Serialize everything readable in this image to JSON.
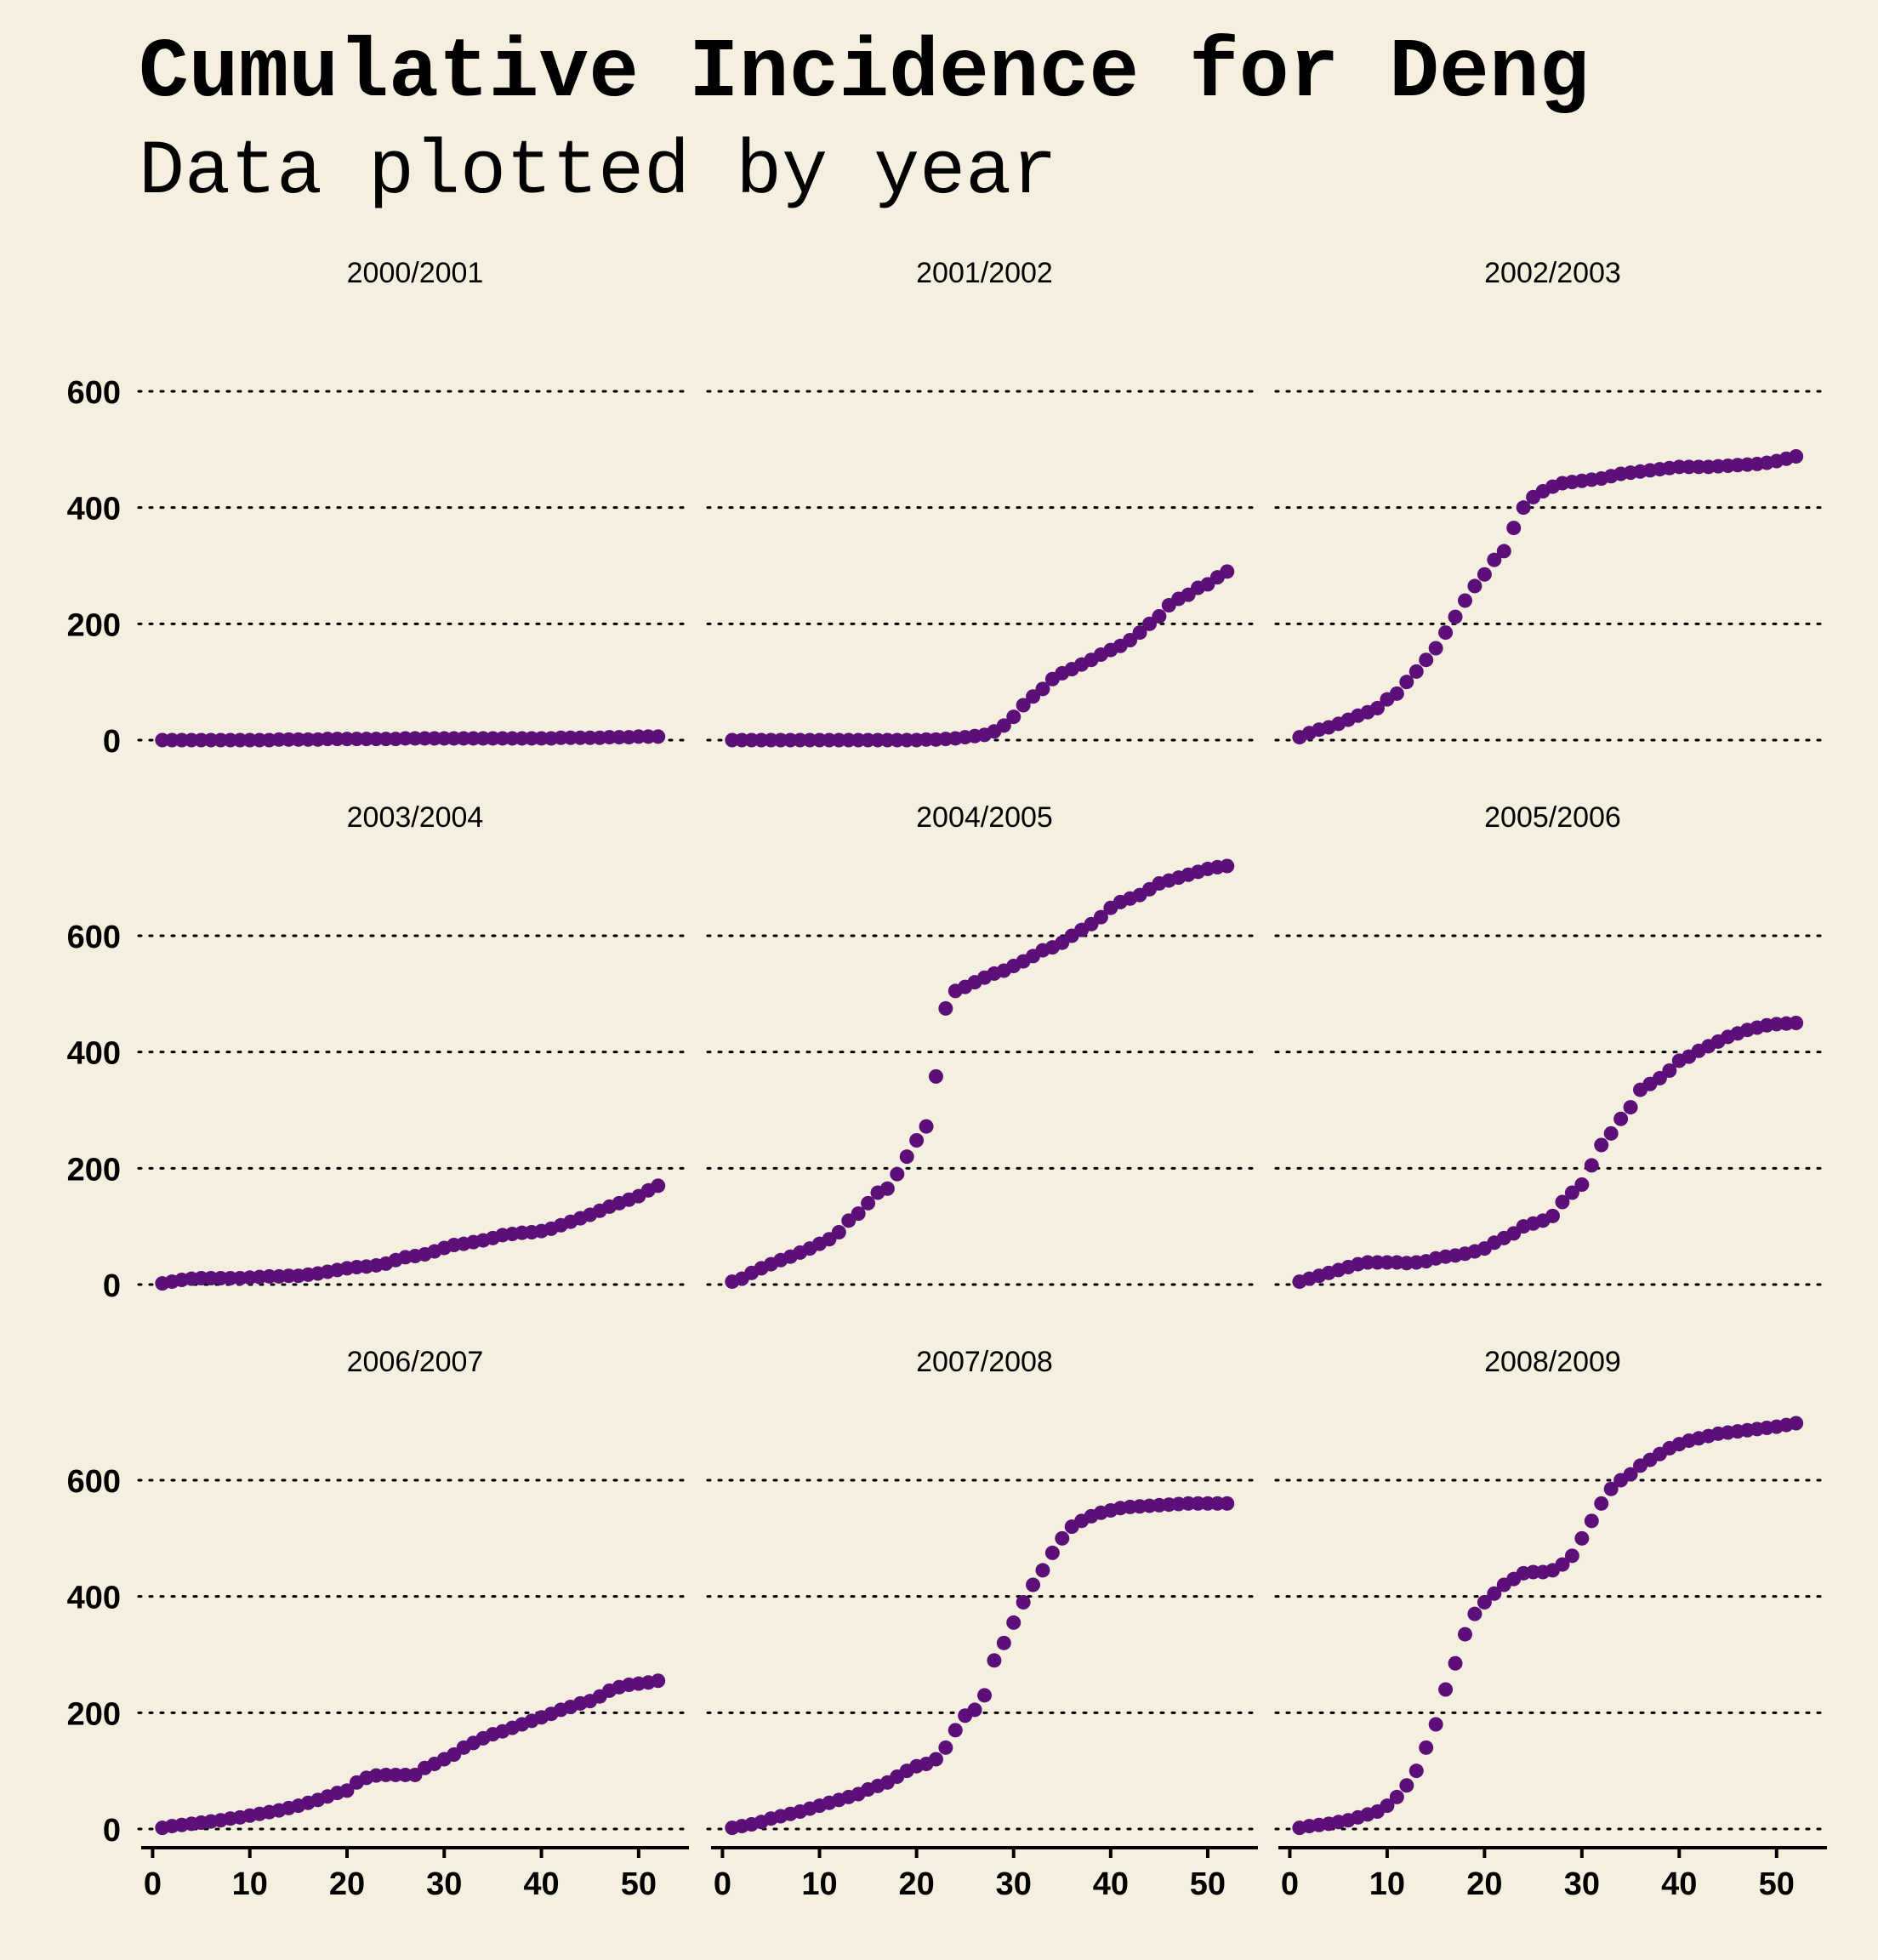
{
  "chart_data": {
    "type": "scatter",
    "title": "Cumulative Incidence for Deng",
    "subtitle": "Data plotted by year",
    "xlabel": "",
    "ylabel": "",
    "xlim": [
      -1,
      55
    ],
    "x_ticks": [
      0,
      10,
      20,
      30,
      40,
      50
    ],
    "marker_color": "#5c0f78",
    "background": "#f5efe0",
    "panels": [
      {
        "label": "2000/2001",
        "ylim": [
          -5,
          620
        ],
        "y_ticks": [
          0,
          200,
          400,
          600
        ],
        "x": [
          1,
          2,
          3,
          4,
          5,
          6,
          7,
          8,
          9,
          10,
          11,
          12,
          13,
          14,
          15,
          16,
          17,
          18,
          19,
          20,
          21,
          22,
          23,
          24,
          25,
          26,
          27,
          28,
          29,
          30,
          31,
          32,
          33,
          34,
          35,
          36,
          37,
          38,
          39,
          40,
          41,
          42,
          43,
          44,
          45,
          46,
          47,
          48,
          49,
          50,
          51,
          52
        ],
        "y": [
          0,
          0,
          0,
          0,
          0,
          0,
          0,
          0,
          0,
          0,
          0,
          0,
          1,
          1,
          1,
          1,
          1,
          2,
          2,
          2,
          2,
          2,
          2,
          2,
          2,
          3,
          3,
          3,
          3,
          3,
          3,
          3,
          3,
          3,
          3,
          3,
          3,
          3,
          3,
          3,
          3,
          4,
          4,
          4,
          4,
          4,
          5,
          5,
          5,
          6,
          6,
          6
        ]
      },
      {
        "label": "2001/2002",
        "ylim": [
          -5,
          620
        ],
        "y_ticks": [
          0,
          200,
          400,
          600
        ],
        "x": [
          1,
          2,
          3,
          4,
          5,
          6,
          7,
          8,
          9,
          10,
          11,
          12,
          13,
          14,
          15,
          16,
          17,
          18,
          19,
          20,
          21,
          22,
          23,
          24,
          25,
          26,
          27,
          28,
          29,
          30,
          31,
          32,
          33,
          34,
          35,
          36,
          37,
          38,
          39,
          40,
          41,
          42,
          43,
          44,
          45,
          46,
          47,
          48,
          49,
          50,
          51,
          52
        ],
        "y": [
          0,
          0,
          0,
          0,
          0,
          0,
          0,
          0,
          0,
          0,
          0,
          0,
          0,
          0,
          0,
          0,
          0,
          0,
          0,
          0,
          1,
          1,
          2,
          3,
          5,
          7,
          9,
          15,
          25,
          40,
          60,
          75,
          88,
          105,
          115,
          122,
          130,
          138,
          147,
          155,
          162,
          172,
          185,
          200,
          213,
          232,
          243,
          250,
          262,
          268,
          280,
          290
        ]
      },
      {
        "label": "2002/2003",
        "ylim": [
          -5,
          620
        ],
        "y_ticks": [
          0,
          200,
          400,
          600
        ],
        "x": [
          1,
          2,
          3,
          4,
          5,
          6,
          7,
          8,
          9,
          10,
          11,
          12,
          13,
          14,
          15,
          16,
          17,
          18,
          19,
          20,
          21,
          22,
          23,
          24,
          25,
          26,
          27,
          28,
          29,
          30,
          31,
          32,
          33,
          34,
          35,
          36,
          37,
          38,
          39,
          40,
          41,
          42,
          43,
          44,
          45,
          46,
          47,
          48,
          49,
          50,
          51,
          52
        ],
        "y": [
          5,
          12,
          18,
          22,
          28,
          35,
          42,
          48,
          55,
          70,
          80,
          100,
          118,
          138,
          158,
          185,
          212,
          240,
          265,
          285,
          310,
          325,
          365,
          400,
          418,
          428,
          436,
          442,
          444,
          446,
          448,
          450,
          454,
          458,
          460,
          462,
          464,
          466,
          468,
          470,
          470,
          470,
          470,
          471,
          472,
          473,
          474,
          475,
          477,
          480,
          484,
          488
        ]
      },
      {
        "label": "2003/2004",
        "ylim": [
          -5,
          770
        ],
        "y_ticks": [
          0,
          200,
          400,
          600
        ],
        "x": [
          1,
          2,
          3,
          4,
          5,
          6,
          7,
          8,
          9,
          10,
          11,
          12,
          13,
          14,
          15,
          16,
          17,
          18,
          19,
          20,
          21,
          22,
          23,
          24,
          25,
          26,
          27,
          28,
          29,
          30,
          31,
          32,
          33,
          34,
          35,
          36,
          37,
          38,
          39,
          40,
          41,
          42,
          43,
          44,
          45,
          46,
          47,
          48,
          49,
          50,
          51,
          52
        ],
        "y": [
          2,
          5,
          8,
          10,
          11,
          11,
          11,
          11,
          11,
          12,
          13,
          14,
          14,
          15,
          15,
          17,
          19,
          22,
          25,
          28,
          30,
          31,
          33,
          36,
          42,
          47,
          49,
          52,
          57,
          63,
          68,
          70,
          73,
          76,
          80,
          85,
          87,
          89,
          90,
          92,
          96,
          102,
          108,
          114,
          120,
          127,
          134,
          140,
          146,
          152,
          162,
          170
        ]
      },
      {
        "label": "2004/2005",
        "ylim": [
          -5,
          770
        ],
        "y_ticks": [
          0,
          200,
          400,
          600
        ],
        "x": [
          1,
          2,
          3,
          4,
          5,
          6,
          7,
          8,
          9,
          10,
          11,
          12,
          13,
          14,
          15,
          16,
          17,
          18,
          19,
          20,
          21,
          22,
          23,
          24,
          25,
          26,
          27,
          28,
          29,
          30,
          31,
          32,
          33,
          34,
          35,
          36,
          37,
          38,
          39,
          40,
          41,
          42,
          43,
          44,
          45,
          46,
          47,
          48,
          49,
          50,
          51,
          52
        ],
        "y": [
          5,
          10,
          20,
          28,
          35,
          42,
          48,
          55,
          62,
          70,
          78,
          90,
          110,
          122,
          140,
          158,
          165,
          190,
          220,
          248,
          272,
          358,
          475,
          505,
          512,
          520,
          528,
          535,
          540,
          548,
          556,
          565,
          575,
          580,
          588,
          600,
          610,
          620,
          632,
          648,
          658,
          664,
          670,
          680,
          690,
          695,
          700,
          705,
          710,
          715,
          718,
          720
        ]
      },
      {
        "label": "2005/2006",
        "ylim": [
          -5,
          770
        ],
        "y_ticks": [
          0,
          200,
          400,
          600
        ],
        "x": [
          1,
          2,
          3,
          4,
          5,
          6,
          7,
          8,
          9,
          10,
          11,
          12,
          13,
          14,
          15,
          16,
          17,
          18,
          19,
          20,
          21,
          22,
          23,
          24,
          25,
          26,
          27,
          28,
          29,
          30,
          31,
          32,
          33,
          34,
          35,
          36,
          37,
          38,
          39,
          40,
          41,
          42,
          43,
          44,
          45,
          46,
          47,
          48,
          49,
          50,
          51,
          52
        ],
        "y": [
          5,
          10,
          15,
          20,
          25,
          30,
          35,
          38,
          38,
          38,
          38,
          37,
          38,
          40,
          45,
          48,
          50,
          53,
          57,
          62,
          72,
          80,
          88,
          100,
          105,
          110,
          118,
          142,
          158,
          172,
          205,
          240,
          260,
          285,
          305,
          335,
          345,
          355,
          368,
          385,
          392,
          402,
          410,
          418,
          426,
          432,
          438,
          442,
          446,
          448,
          449,
          450
        ]
      },
      {
        "label": "2006/2007",
        "ylim": [
          -5,
          770
        ],
        "y_ticks": [
          0,
          200,
          400,
          600
        ],
        "x": [
          1,
          2,
          3,
          4,
          5,
          6,
          7,
          8,
          9,
          10,
          11,
          12,
          13,
          14,
          15,
          16,
          17,
          18,
          19,
          20,
          21,
          22,
          23,
          24,
          25,
          26,
          27,
          28,
          29,
          30,
          31,
          32,
          33,
          34,
          35,
          36,
          37,
          38,
          39,
          40,
          41,
          42,
          43,
          44,
          45,
          46,
          47,
          48,
          49,
          50,
          51,
          52
        ],
        "y": [
          2,
          5,
          7,
          9,
          11,
          13,
          15,
          18,
          20,
          23,
          26,
          29,
          32,
          36,
          40,
          45,
          50,
          56,
          62,
          66,
          80,
          88,
          92,
          93,
          93,
          93,
          93,
          105,
          112,
          120,
          128,
          140,
          148,
          156,
          163,
          168,
          174,
          180,
          186,
          192,
          198,
          205,
          210,
          216,
          220,
          228,
          238,
          244,
          248,
          250,
          252,
          255
        ]
      },
      {
        "label": "2007/2008",
        "ylim": [
          -5,
          770
        ],
        "y_ticks": [
          0,
          200,
          400,
          600
        ],
        "x": [
          1,
          2,
          3,
          4,
          5,
          6,
          7,
          8,
          9,
          10,
          11,
          12,
          13,
          14,
          15,
          16,
          17,
          18,
          19,
          20,
          21,
          22,
          23,
          24,
          25,
          26,
          27,
          28,
          29,
          30,
          31,
          32,
          33,
          34,
          35,
          36,
          37,
          38,
          39,
          40,
          41,
          42,
          43,
          44,
          45,
          46,
          47,
          48,
          49,
          50,
          51,
          52
        ],
        "y": [
          2,
          5,
          8,
          12,
          18,
          22,
          26,
          30,
          35,
          40,
          45,
          50,
          55,
          60,
          68,
          74,
          80,
          90,
          100,
          108,
          112,
          120,
          140,
          170,
          195,
          205,
          230,
          290,
          320,
          355,
          390,
          420,
          445,
          475,
          500,
          520,
          530,
          538,
          544,
          548,
          552,
          554,
          555,
          556,
          557,
          558,
          559,
          560,
          560,
          560,
          560,
          560
        ]
      },
      {
        "label": "2008/2009",
        "ylim": [
          -5,
          770
        ],
        "y_ticks": [
          0,
          200,
          400,
          600
        ],
        "x": [
          1,
          2,
          3,
          4,
          5,
          6,
          7,
          8,
          9,
          10,
          11,
          12,
          13,
          14,
          15,
          16,
          17,
          18,
          19,
          20,
          21,
          22,
          23,
          24,
          25,
          26,
          27,
          28,
          29,
          30,
          31,
          32,
          33,
          34,
          35,
          36,
          37,
          38,
          39,
          40,
          41,
          42,
          43,
          44,
          45,
          46,
          47,
          48,
          49,
          50,
          51,
          52
        ],
        "y": [
          2,
          5,
          7,
          9,
          12,
          15,
          20,
          25,
          30,
          40,
          55,
          75,
          100,
          140,
          180,
          240,
          285,
          335,
          370,
          390,
          405,
          420,
          430,
          440,
          442,
          442,
          445,
          455,
          470,
          500,
          530,
          560,
          585,
          600,
          610,
          625,
          635,
          645,
          655,
          662,
          668,
          672,
          676,
          680,
          682,
          684,
          686,
          688,
          690,
          692,
          695,
          698
        ]
      }
    ]
  }
}
